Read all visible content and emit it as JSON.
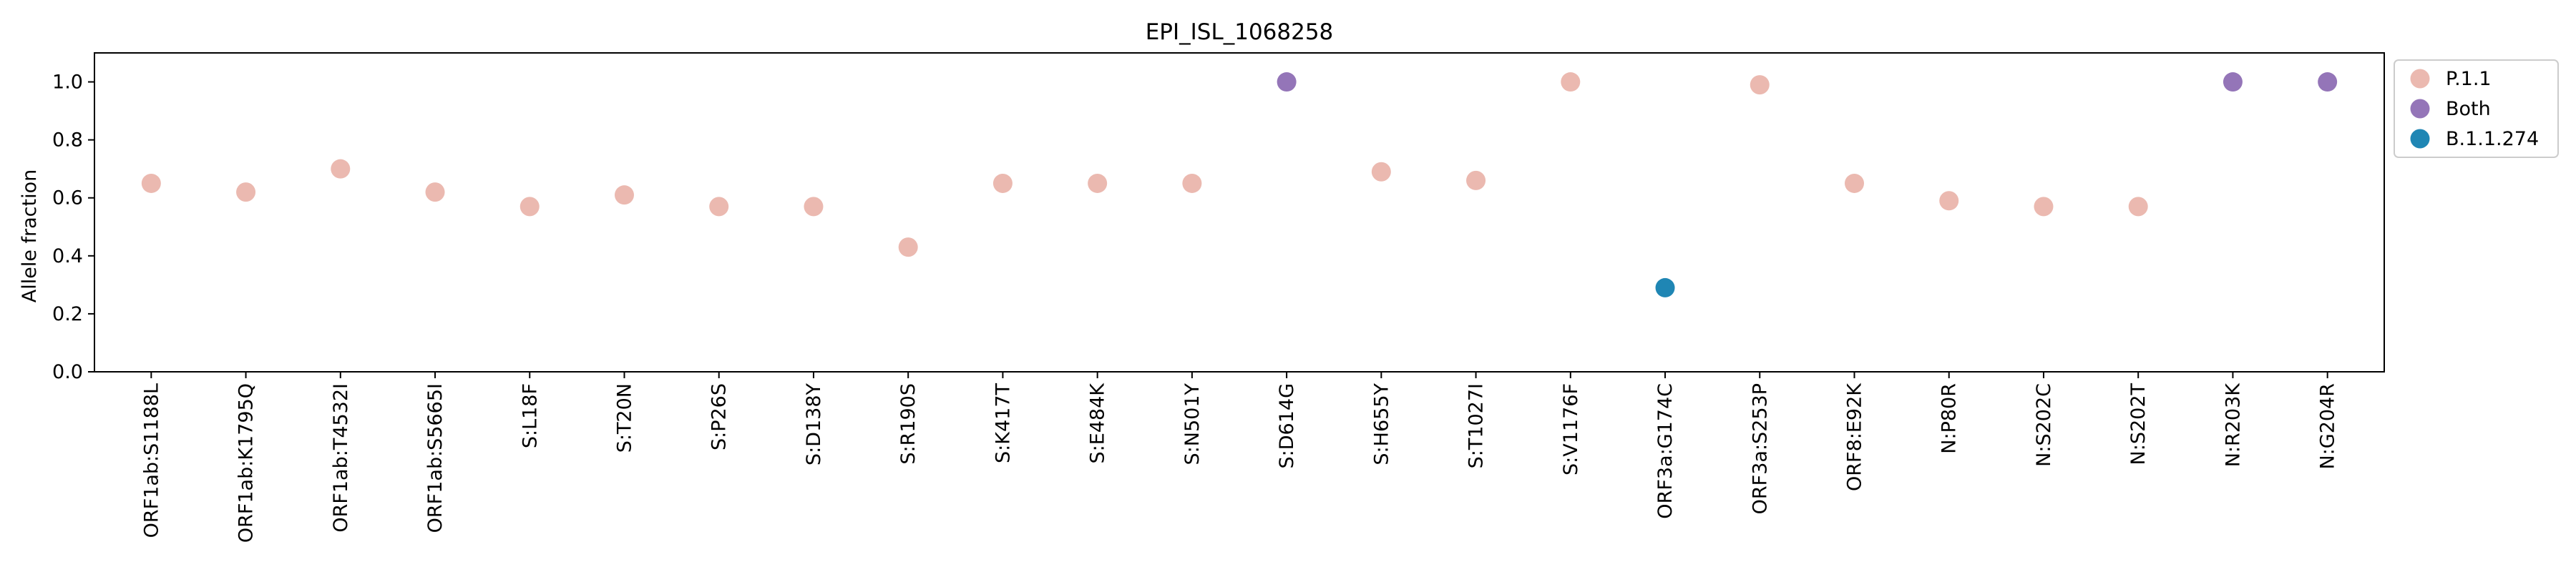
{
  "chart_data": {
    "type": "scatter",
    "title": "EPI_ISL_1068258",
    "xlabel": "",
    "ylabel": "Allele fraction",
    "ylim": [
      0.0,
      1.1
    ],
    "yticks": [
      "0.0",
      "0.2",
      "0.4",
      "0.6",
      "0.8",
      "1.0"
    ],
    "grid": false,
    "legend_position": "outside-top-right",
    "colors": {
      "P.1.1": "#ebb9b0",
      "Both": "#9475b8",
      "B.1.1.274": "#1f86b4"
    },
    "legend": [
      "P.1.1",
      "Both",
      "B.1.1.274"
    ],
    "categories": [
      "ORF1ab:S1188L",
      "ORF1ab:K1795Q",
      "ORF1ab:T4532I",
      "ORF1ab:S5665I",
      "S:L18F",
      "S:T20N",
      "S:P26S",
      "S:D138Y",
      "S:R190S",
      "S:K417T",
      "S:E484K",
      "S:N501Y",
      "S:D614G",
      "S:H655Y",
      "S:T1027I",
      "S:V1176F",
      "ORF3a:G174C",
      "ORF3a:S253P",
      "ORF8:E92K",
      "N:P80R",
      "N:S202C",
      "N:S202T",
      "N:R203K",
      "N:G204R"
    ],
    "points": [
      {
        "x": "ORF1ab:S1188L",
        "y": 0.65,
        "group": "P.1.1"
      },
      {
        "x": "ORF1ab:K1795Q",
        "y": 0.62,
        "group": "P.1.1"
      },
      {
        "x": "ORF1ab:T4532I",
        "y": 0.7,
        "group": "P.1.1"
      },
      {
        "x": "ORF1ab:S5665I",
        "y": 0.62,
        "group": "P.1.1"
      },
      {
        "x": "S:L18F",
        "y": 0.57,
        "group": "P.1.1"
      },
      {
        "x": "S:T20N",
        "y": 0.61,
        "group": "P.1.1"
      },
      {
        "x": "S:P26S",
        "y": 0.57,
        "group": "P.1.1"
      },
      {
        "x": "S:D138Y",
        "y": 0.57,
        "group": "P.1.1"
      },
      {
        "x": "S:R190S",
        "y": 0.43,
        "group": "P.1.1"
      },
      {
        "x": "S:K417T",
        "y": 0.65,
        "group": "P.1.1"
      },
      {
        "x": "S:E484K",
        "y": 0.65,
        "group": "P.1.1"
      },
      {
        "x": "S:N501Y",
        "y": 0.65,
        "group": "P.1.1"
      },
      {
        "x": "S:D614G",
        "y": 1.0,
        "group": "Both"
      },
      {
        "x": "S:H655Y",
        "y": 0.69,
        "group": "P.1.1"
      },
      {
        "x": "S:T1027I",
        "y": 0.66,
        "group": "P.1.1"
      },
      {
        "x": "S:V1176F",
        "y": 1.0,
        "group": "P.1.1"
      },
      {
        "x": "ORF3a:G174C",
        "y": 0.29,
        "group": "B.1.1.274"
      },
      {
        "x": "ORF3a:S253P",
        "y": 0.99,
        "group": "P.1.1"
      },
      {
        "x": "ORF8:E92K",
        "y": 0.65,
        "group": "P.1.1"
      },
      {
        "x": "N:P80R",
        "y": 0.59,
        "group": "P.1.1"
      },
      {
        "x": "N:S202C",
        "y": 0.57,
        "group": "P.1.1"
      },
      {
        "x": "N:S202T",
        "y": 0.57,
        "group": "P.1.1"
      },
      {
        "x": "N:R203K",
        "y": 1.0,
        "group": "Both"
      },
      {
        "x": "N:G204R",
        "y": 1.0,
        "group": "Both"
      }
    ]
  }
}
